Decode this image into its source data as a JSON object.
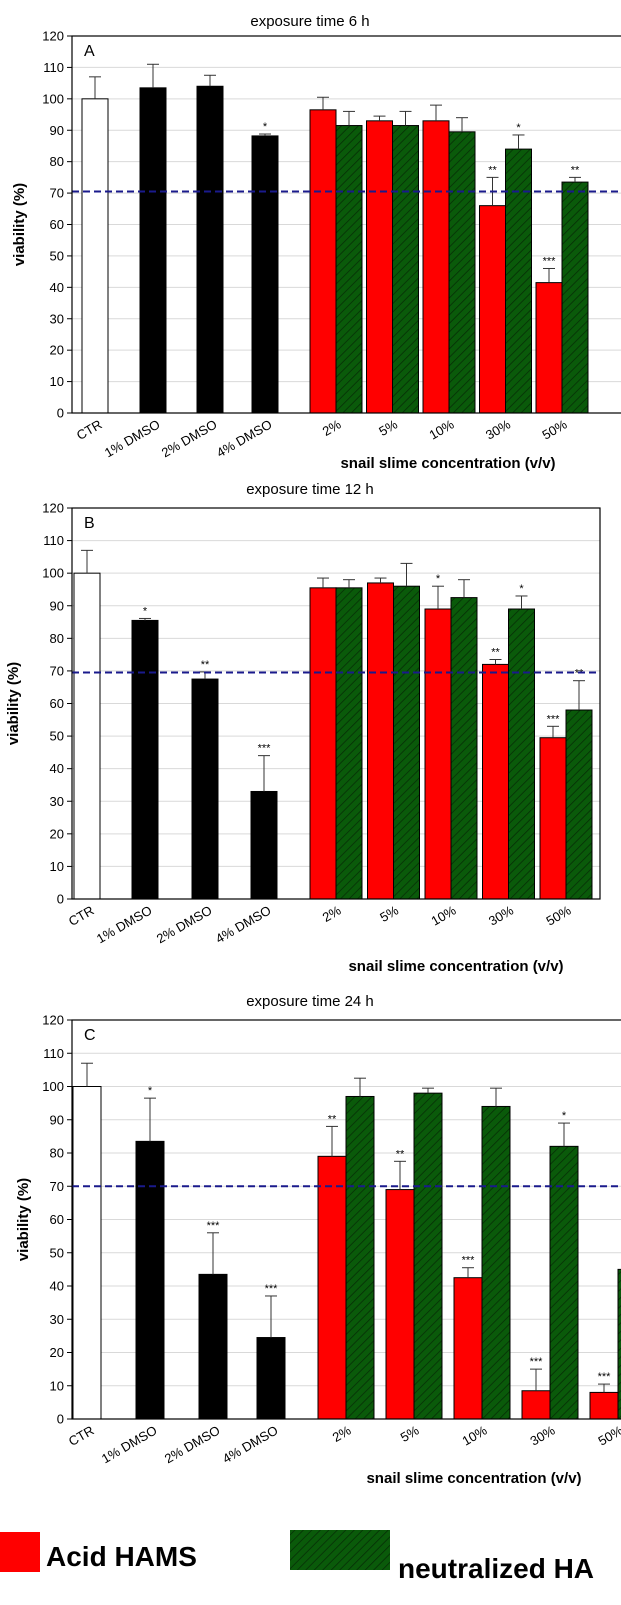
{
  "colors": {
    "ctr": "#ffffff",
    "dmso": "#000000",
    "acid": "#ff0000",
    "neutralized": "#0a5a0a",
    "threshold_line": "#1a1a8c",
    "grid": "#d9d9d9"
  },
  "legend": [
    {
      "label": "Acid HAMS",
      "color": "#ff0000",
      "hatched": false
    },
    {
      "label": "neutralized HA",
      "color": "#0a5a0a",
      "hatched": true
    }
  ],
  "chart_data": [
    {
      "type": "bar",
      "title": "exposure time 6 h",
      "panel": "A",
      "ylabel": "viability (%)",
      "xlabel": "snail slime concentration (v/v)",
      "ylim": [
        0,
        120
      ],
      "yticks": [
        0,
        10,
        20,
        30,
        40,
        50,
        60,
        70,
        80,
        90,
        100,
        110,
        120
      ],
      "grid": true,
      "threshold": 70.5,
      "controls": {
        "categories": [
          "CTR",
          "1% DMSO",
          "2% DMSO",
          "4% DMSO"
        ],
        "values": [
          100,
          103.5,
          104,
          88.2
        ],
        "errors": [
          7,
          7.5,
          3.5,
          0.6
        ],
        "stars": [
          "",
          "",
          "",
          "*"
        ]
      },
      "groups": {
        "categories": [
          "2%",
          "5%",
          "10%",
          "30%",
          "50%"
        ],
        "series": [
          {
            "name": "Acid HAMS",
            "values": [
              96.5,
              93,
              93,
              66,
              41.5
            ],
            "errors": [
              4,
              1.5,
              5,
              9,
              4.5
            ],
            "stars": [
              "",
              "",
              "",
              "**",
              "***"
            ]
          },
          {
            "name": "neutralized HA",
            "values": [
              91.5,
              91.5,
              89.5,
              84,
              73.5
            ],
            "errors": [
              4.5,
              4.5,
              4.5,
              4.5,
              1.5
            ],
            "stars": [
              "",
              "",
              "",
              "*",
              "**"
            ]
          }
        ]
      }
    },
    {
      "type": "bar",
      "title": "exposure time 12 h",
      "panel": "B",
      "ylabel": "viability (%)",
      "xlabel": "snail slime concentration (v/v)",
      "ylim": [
        0,
        120
      ],
      "yticks": [
        0,
        10,
        20,
        30,
        40,
        50,
        60,
        70,
        80,
        90,
        100,
        110,
        120
      ],
      "grid": true,
      "threshold": 69.5,
      "controls": {
        "categories": [
          "CTR",
          "1% DMSO",
          "2% DMSO",
          "4% DMSO"
        ],
        "values": [
          100,
          85.5,
          67.5,
          33
        ],
        "errors": [
          7,
          0.6,
          2.2,
          11
        ],
        "stars": [
          "",
          "*",
          "**",
          "***"
        ]
      },
      "groups": {
        "categories": [
          "2%",
          "5%",
          "10%",
          "30%",
          "50%"
        ],
        "series": [
          {
            "name": "Acid HAMS",
            "values": [
              95.5,
              97,
              89,
              72,
              49.5
            ],
            "errors": [
              3,
              1.5,
              7,
              1.5,
              3.5
            ],
            "stars": [
              "",
              "",
              "*",
              "**",
              "***"
            ]
          },
          {
            "name": "neutralized HA",
            "values": [
              95.5,
              96,
              92.5,
              89,
              58
            ],
            "errors": [
              2.5,
              7,
              5.5,
              4,
              9
            ],
            "stars": [
              "",
              "",
              "",
              "*",
              "**"
            ]
          }
        ]
      }
    },
    {
      "type": "bar",
      "title": "exposure time 24 h",
      "panel": "C",
      "ylabel": "viability (%)",
      "xlabel": "snail slime concentration (v/v)",
      "ylim": [
        0,
        120
      ],
      "yticks": [
        0,
        10,
        20,
        30,
        40,
        50,
        60,
        70,
        80,
        90,
        100,
        110,
        120
      ],
      "grid": true,
      "threshold": 70,
      "controls": {
        "categories": [
          "CTR",
          "1% DMSO",
          "2% DMSO",
          "4% DMSO"
        ],
        "values": [
          100,
          83.5,
          43.5,
          24.5
        ],
        "errors": [
          7,
          13,
          12.5,
          12.5
        ],
        "stars": [
          "",
          "*",
          "***",
          "***"
        ]
      },
      "groups": {
        "categories": [
          "2%",
          "5%",
          "10%",
          "30%",
          "50%"
        ],
        "series": [
          {
            "name": "Acid HAMS",
            "values": [
              79,
              69,
              42.5,
              8.5,
              8
            ],
            "errors": [
              9,
              8.5,
              3,
              6.5,
              2.5
            ],
            "stars": [
              "**",
              "**",
              "***",
              "***",
              "***"
            ]
          },
          {
            "name": "neutralized HA",
            "values": [
              97,
              98,
              94,
              82,
              45
            ],
            "errors": [
              5.5,
              1.5,
              5.5,
              7,
              10
            ],
            "stars": [
              "",
              "",
              "",
              "*",
              "***"
            ]
          }
        ]
      }
    }
  ]
}
